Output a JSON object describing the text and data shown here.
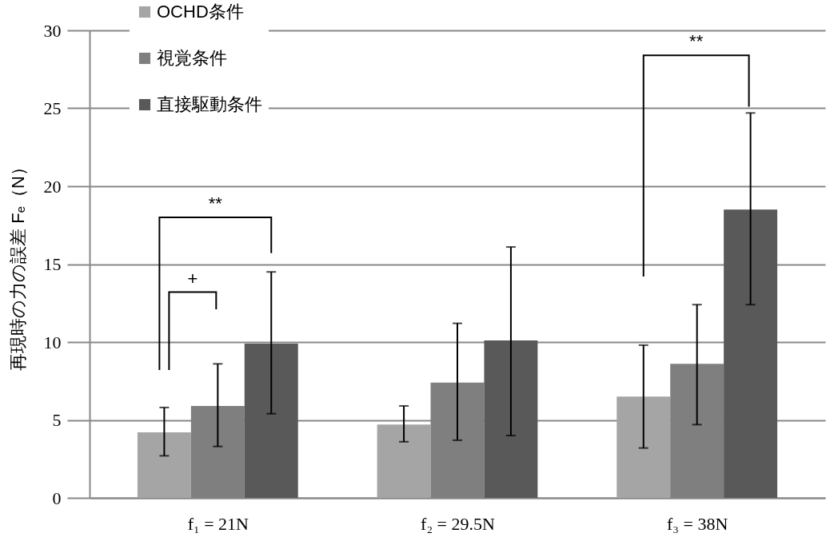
{
  "chart_data": {
    "type": "bar",
    "ylabel": "再現時の力の誤差 Fₑ（N）",
    "categories": [
      "f₁ = 21N",
      "f₂ = 29.5N",
      "f₃ = 38N"
    ],
    "series": [
      {
        "name": "OCHD条件",
        "color": "#a5a5a5",
        "values": [
          4.2,
          4.7,
          6.5
        ],
        "errors": [
          [
            2.7,
            5.8
          ],
          [
            3.6,
            5.9
          ],
          [
            3.2,
            9.8
          ]
        ]
      },
      {
        "name": "視覚条件",
        "color": "#7f7f7f",
        "values": [
          5.9,
          7.4,
          8.6
        ],
        "errors": [
          [
            3.3,
            8.6
          ],
          [
            3.7,
            11.2
          ],
          [
            4.7,
            12.4
          ]
        ]
      },
      {
        "name": "直接駆動条件",
        "color": "#595959",
        "values": [
          9.9,
          10.1,
          18.5
        ],
        "errors": [
          [
            5.4,
            14.5
          ],
          [
            4.0,
            16.1
          ],
          [
            12.4,
            24.7
          ]
        ]
      }
    ],
    "ylim": [
      0,
      30
    ],
    "yticks": [
      0,
      5,
      10,
      15,
      20,
      25,
      30
    ],
    "grid": "y",
    "legend": "top left",
    "annotations": [
      "**",
      "+",
      "**"
    ]
  }
}
